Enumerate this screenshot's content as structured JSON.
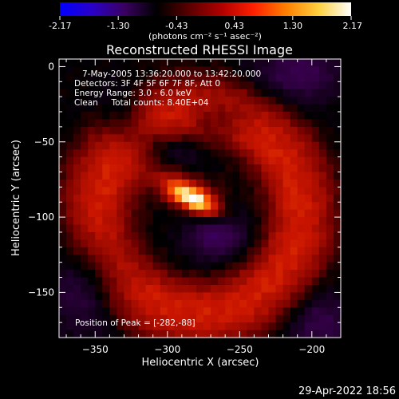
{
  "colorbar": {
    "tick_labels": [
      "-2.17",
      "-1.30",
      "-0.43",
      "0.43",
      "1.30",
      "2.17"
    ],
    "tick_values": [
      -2.17,
      -1.3,
      -0.43,
      0.43,
      1.3,
      2.17
    ],
    "range": [
      -2.17,
      2.17
    ],
    "units": "(photons cm⁻² s⁻¹ asec⁻²)",
    "colors": [
      "#0000ff",
      "#2a00c8",
      "#3a0060",
      "#000000",
      "#5a0000",
      "#b00000",
      "#ff2000",
      "#ff8000",
      "#ffd040",
      "#ffffff"
    ]
  },
  "chart_data": {
    "type": "heatmap",
    "title": "Reconstructed RHESSI Image",
    "xlabel": "Heliocentric X (arcsec)",
    "ylabel": "Heliocentric Y (arcsec)",
    "xlim": [
      -375,
      -180
    ],
    "ylim": [
      -180,
      5
    ],
    "x_ticks": [
      -350,
      -300,
      -250,
      -200
    ],
    "x_tick_labels": [
      "−350",
      "−300",
      "−250",
      "−200"
    ],
    "y_ticks": [
      0,
      -50,
      -100,
      -150
    ],
    "y_tick_labels": [
      "0",
      "−50",
      "−100",
      "−150"
    ],
    "peak_position": [
      -282,
      -88
    ],
    "annotations": [
      "7-May-2005 13:36:20.000 to 13:42:20.000",
      "Detectors: 3F 4F 5F 6F 7F 8F, Att 0",
      "Energy Range: 3.0 - 6.0 keV",
      "Clean     Total counts: 8.40E+04",
      "Position of Peak = [-282,-88]"
    ]
  },
  "footer": {
    "timestamp": "29-Apr-2022 18:56"
  }
}
